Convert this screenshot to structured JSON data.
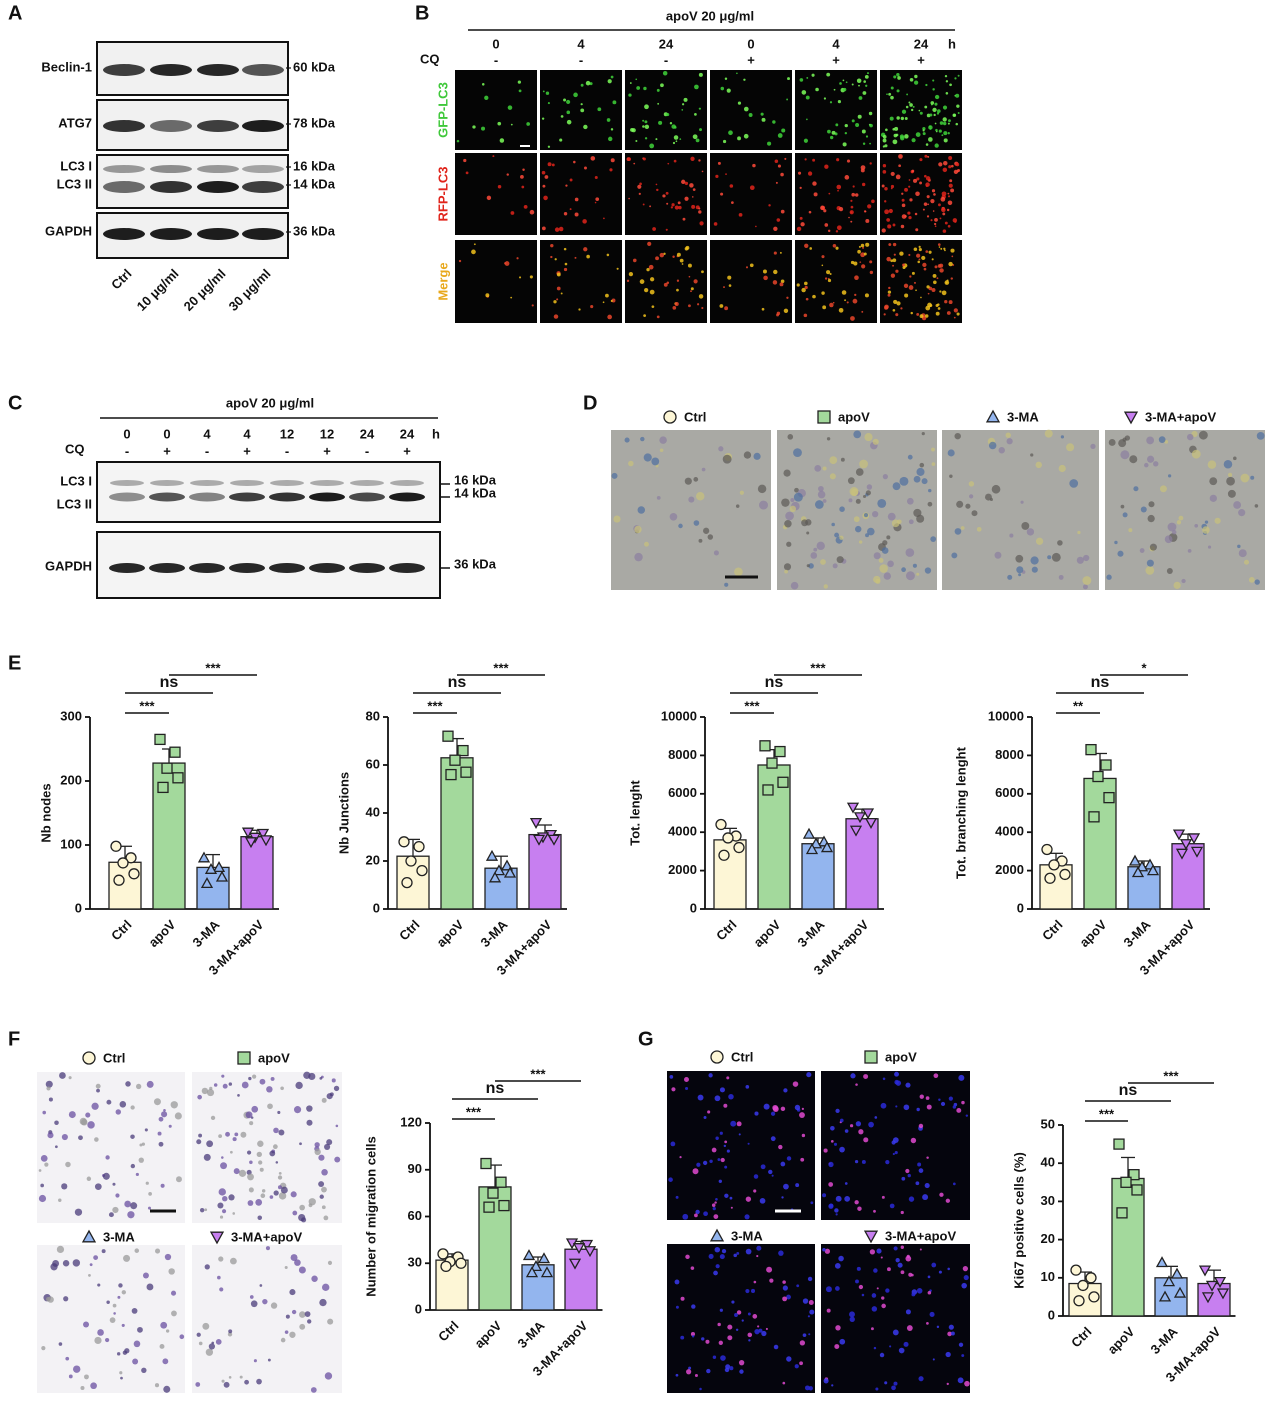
{
  "panels": {
    "A": {
      "letter": "A",
      "rows": [
        "Beclin-1",
        "ATG7",
        "LC3 I",
        "LC3 II",
        "GAPDH"
      ],
      "kda": [
        "60 kDa",
        "78 kDa",
        "16 kDa",
        "14 kDa",
        "36 kDa"
      ],
      "lanes": [
        "Ctrl",
        "10 μg/ml",
        "20 μg/ml",
        "30 μg/ml"
      ]
    },
    "B": {
      "letter": "B",
      "header": "apoV 20 μg/ml",
      "times": [
        "0",
        "4",
        "24",
        "0",
        "4",
        "24"
      ],
      "unit": "h",
      "cq_label": "CQ",
      "cq": [
        "-",
        "-",
        "-",
        "+",
        "+",
        "+"
      ],
      "rows": [
        "GFP-LC3",
        "RFP-LC3",
        "Merge"
      ]
    },
    "C": {
      "letter": "C",
      "header": "apoV 20 μg/ml",
      "times": [
        "0",
        "0",
        "4",
        "4",
        "12",
        "12",
        "24",
        "24"
      ],
      "unit": "h",
      "cq_label": "CQ",
      "cq": [
        "-",
        "+",
        "-",
        "+",
        "-",
        "+",
        "-",
        "+"
      ],
      "bands": [
        "LC3 I",
        "LC3 II",
        "GAPDH"
      ],
      "kda": [
        "16 kDa",
        "14 kDa",
        "36 kDa"
      ]
    },
    "D": {
      "letter": "D",
      "legend": [
        "Ctrl",
        "apoV",
        "3-MA",
        "3-MA+apoV"
      ]
    },
    "E": {
      "letter": "E"
    },
    "F": {
      "letter": "F",
      "images": [
        "Ctrl",
        "apoV",
        "3-MA",
        "3-MA+apoV"
      ]
    },
    "G": {
      "letter": "G",
      "images": [
        "Ctrl",
        "apoV",
        "3-MA",
        "3-MA+apoV"
      ]
    }
  },
  "chart_data": [
    {
      "type": "bar",
      "ylabel": "Nb nodes",
      "categories": [
        "Ctrl",
        "apoV",
        "3-MA",
        "3-MA+apoV"
      ],
      "colors": [
        "#fdf6d6",
        "#a3d99c",
        "#93b5ee",
        "#c77ff0"
      ],
      "values": [
        73,
        228,
        65,
        113
      ],
      "errors": [
        25,
        22,
        20,
        10
      ],
      "points": [
        [
          98,
          80,
          72,
          55,
          45
        ],
        [
          265,
          245,
          220,
          205,
          190
        ],
        [
          80,
          65,
          62,
          50,
          40
        ],
        [
          120,
          118,
          112,
          108,
          105
        ]
      ],
      "ylim": [
        0,
        300
      ],
      "yticks": [
        0,
        100,
        200,
        300
      ],
      "annotations": [
        "***",
        "ns",
        "***"
      ]
    },
    {
      "type": "bar",
      "ylabel": "Nb Junctions",
      "categories": [
        "Ctrl",
        "apoV",
        "3-MA",
        "3-MA+apoV"
      ],
      "colors": [
        "#fdf6d6",
        "#a3d99c",
        "#93b5ee",
        "#c77ff0"
      ],
      "values": [
        22,
        63,
        17,
        31
      ],
      "errors": [
        7,
        8,
        5,
        4
      ],
      "points": [
        [
          28,
          26,
          20,
          16,
          11
        ],
        [
          72,
          66,
          62,
          57,
          56
        ],
        [
          22,
          18,
          16,
          15,
          13
        ],
        [
          36,
          31,
          30,
          29,
          29
        ]
      ],
      "ylim": [
        0,
        80
      ],
      "yticks": [
        0,
        20,
        40,
        60,
        80
      ],
      "annotations": [
        "***",
        "ns",
        "***"
      ]
    },
    {
      "type": "bar",
      "ylabel": "Tot. lenght",
      "categories": [
        "Ctrl",
        "apoV",
        "3-MA",
        "3-MA+apoV"
      ],
      "colors": [
        "#fdf6d6",
        "#a3d99c",
        "#93b5ee",
        "#c77ff0"
      ],
      "values": [
        3600,
        7500,
        3400,
        4700
      ],
      "errors": [
        600,
        800,
        300,
        500
      ],
      "points": [
        [
          4400,
          3800,
          3700,
          3200,
          2800
        ],
        [
          8500,
          8200,
          7600,
          6600,
          6200
        ],
        [
          3900,
          3500,
          3400,
          3200,
          3100
        ],
        [
          5300,
          5000,
          4800,
          4500,
          4100
        ]
      ],
      "ylim": [
        0,
        10000
      ],
      "yticks": [
        0,
        2000,
        4000,
        6000,
        8000,
        10000
      ],
      "annotations": [
        "***",
        "ns",
        "***"
      ]
    },
    {
      "type": "bar",
      "ylabel": "Tot. branching lenght",
      "categories": [
        "Ctrl",
        "apoV",
        "3-MA",
        "3-MA+apoV"
      ],
      "colors": [
        "#fdf6d6",
        "#a3d99c",
        "#93b5ee",
        "#c77ff0"
      ],
      "values": [
        2300,
        6800,
        2200,
        3400
      ],
      "errors": [
        600,
        1300,
        300,
        500
      ],
      "points": [
        [
          3100,
          2500,
          2300,
          1800,
          1600
        ],
        [
          8300,
          7500,
          6900,
          5800,
          4800
        ],
        [
          2500,
          2300,
          2200,
          2000,
          1900
        ],
        [
          3900,
          3700,
          3400,
          3000,
          2900
        ]
      ],
      "ylim": [
        0,
        10000
      ],
      "yticks": [
        0,
        2000,
        4000,
        6000,
        8000,
        10000
      ],
      "annotations": [
        "**",
        "ns",
        "*"
      ]
    },
    {
      "type": "bar",
      "ylabel": "Number of migration cells",
      "categories": [
        "Ctrl",
        "apoV",
        "3-MA",
        "3-MA+apoV"
      ],
      "colors": [
        "#fdf6d6",
        "#a3d99c",
        "#93b5ee",
        "#c77ff0"
      ],
      "values": [
        32,
        79,
        29,
        39
      ],
      "errors": [
        4,
        14,
        5,
        5
      ],
      "points": [
        [
          36,
          34,
          31,
          30,
          28
        ],
        [
          94,
          82,
          75,
          67,
          66
        ],
        [
          35,
          33,
          28,
          24,
          24
        ],
        [
          43,
          42,
          40,
          38,
          30
        ]
      ],
      "ylim": [
        0,
        120
      ],
      "yticks": [
        0,
        30,
        60,
        90,
        120
      ],
      "annotations": [
        "***",
        "ns",
        "***"
      ]
    },
    {
      "type": "bar",
      "ylabel": "Ki67 positive cells (%)",
      "categories": [
        "Ctrl",
        "apoV",
        "3-MA",
        "3-MA+apoV"
      ],
      "colors": [
        "#fdf6d6",
        "#a3d99c",
        "#93b5ee",
        "#c77ff0"
      ],
      "values": [
        8.5,
        36,
        10,
        8.5
      ],
      "errors": [
        3,
        5.5,
        3,
        3.5
      ],
      "points": [
        [
          12,
          10,
          8,
          5,
          4
        ],
        [
          45,
          37,
          35,
          33,
          27
        ],
        [
          14,
          11,
          9,
          6,
          5
        ],
        [
          12,
          9,
          8,
          6,
          5
        ]
      ],
      "ylim": [
        0,
        50
      ],
      "yticks": [
        0,
        10,
        20,
        30,
        40,
        50
      ],
      "annotations": [
        "***",
        "ns",
        "***"
      ]
    }
  ]
}
